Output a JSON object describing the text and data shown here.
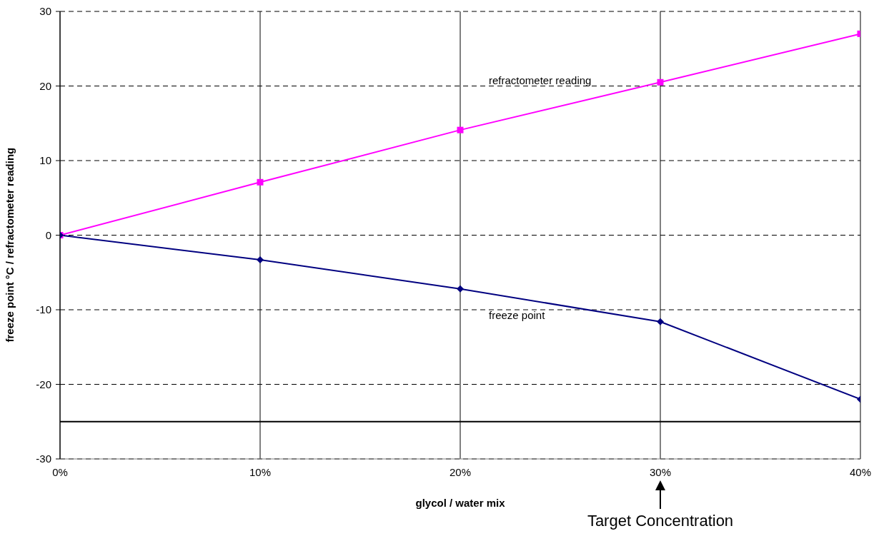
{
  "chart_data": {
    "type": "line",
    "xlabel": "glycol / water mix",
    "ylabel": "freeze point °C / refractometer reading",
    "x": [
      0,
      10,
      20,
      30,
      40
    ],
    "series": [
      {
        "name": "refractometer reading",
        "color": "#ff00ff",
        "marker": "square",
        "values": [
          0,
          7.1,
          14.1,
          20.5,
          27
        ]
      },
      {
        "name": "freeze point",
        "color": "#000080",
        "marker": "diamond",
        "values": [
          0,
          -3.3,
          -7.2,
          -11.6,
          -22
        ]
      }
    ],
    "xlim": [
      0,
      40
    ],
    "xticks": [
      {
        "value": 0,
        "label": "0%"
      },
      {
        "value": 10,
        "label": "10%"
      },
      {
        "value": 20,
        "label": "20%"
      },
      {
        "value": 30,
        "label": "30%"
      },
      {
        "value": 40,
        "label": "40%"
      }
    ],
    "ylim": [
      -30,
      30
    ],
    "yticks": [
      -30,
      -20,
      -10,
      0,
      10,
      20,
      30
    ],
    "ref_lines": [
      {
        "axis": "y",
        "value": -25,
        "color": "#000000"
      }
    ],
    "annotations": [
      "Target Concentration"
    ],
    "grid": true
  }
}
